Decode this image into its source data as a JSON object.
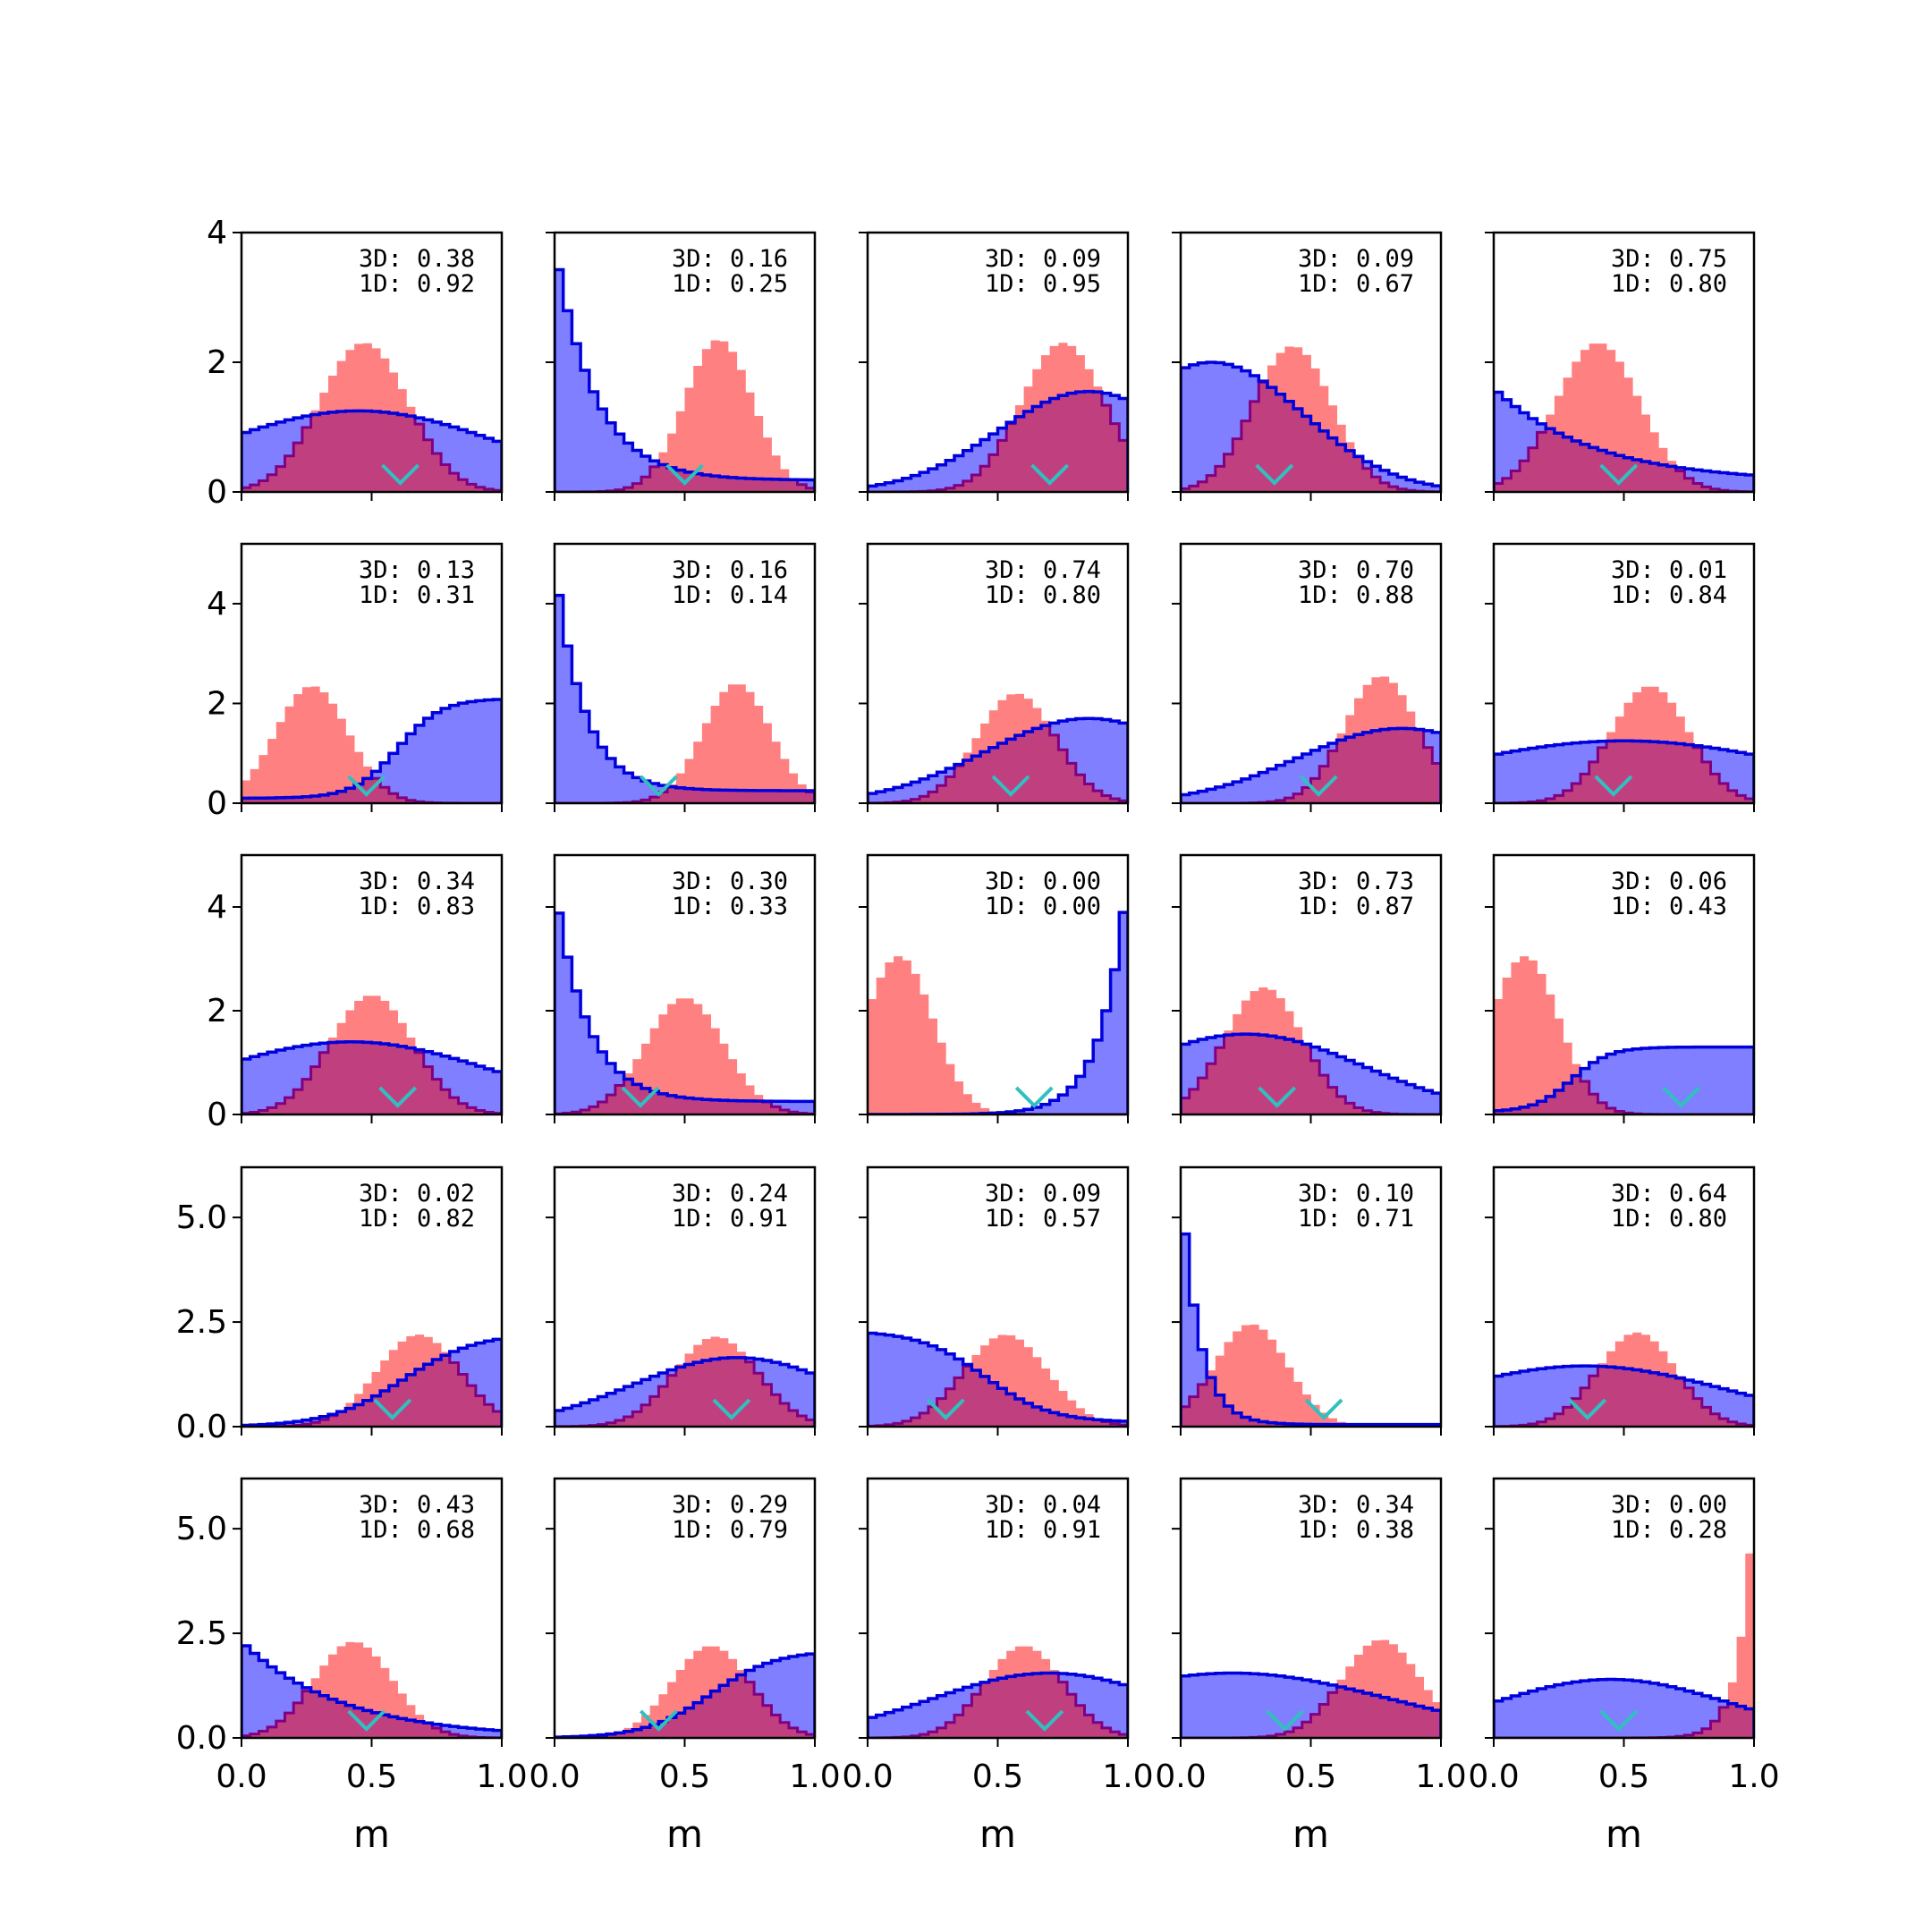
{
  "chart_data": {
    "type": "histogram-grid",
    "rows": 5,
    "cols": 5,
    "sharey": "row",
    "xlabel": "m",
    "xlim": [
      0,
      1
    ],
    "xticks": [
      "0.0",
      "0.5",
      "1.0"
    ],
    "colors": {
      "blue_fill": "#7f7fff",
      "blue_line": "#0000dd",
      "red_fill": "#ff8080",
      "overlap_fill": "#c0407f",
      "overlap_line": "#800080",
      "marker": "#30c0c0"
    },
    "row_axes": [
      {
        "ylim": [
          0,
          4
        ],
        "yticks": [
          0,
          2,
          4
        ],
        "ytick_labels": [
          "0",
          "2",
          "4"
        ]
      },
      {
        "ylim": [
          0,
          5.2
        ],
        "yticks": [
          0,
          2,
          4
        ],
        "ytick_labels": [
          "0",
          "2",
          "4"
        ]
      },
      {
        "ylim": [
          0,
          5.0
        ],
        "yticks": [
          0,
          2,
          4
        ],
        "ytick_labels": [
          "0",
          "2",
          "4"
        ]
      },
      {
        "ylim": [
          0,
          6.2
        ],
        "yticks": [
          0,
          2.5,
          5.0
        ],
        "ytick_labels": [
          "0.0",
          "2.5",
          "5.0"
        ]
      },
      {
        "ylim": [
          0,
          6.2
        ],
        "yticks": [
          0,
          2.5,
          5.0
        ],
        "ytick_labels": [
          "0.0",
          "2.5",
          "5.0"
        ]
      }
    ],
    "panels": [
      {
        "label_3d": "3D: 0.38",
        "label_1d": "1D: 0.92",
        "marker": 0.61,
        "blue": {
          "kind": "gauss",
          "mu": 0.45,
          "sigma": 0.55,
          "peak": 1.25
        },
        "red": {
          "kind": "gauss",
          "mu": 0.47,
          "sigma": 0.17,
          "peak": 2.3
        }
      },
      {
        "label_3d": "3D: 0.16",
        "label_1d": "1D: 0.25",
        "marker": 0.5,
        "blue": {
          "kind": "exp",
          "a": 3.8,
          "k": 6.5,
          "c": 0.18
        },
        "red": {
          "kind": "gauss",
          "mu": 0.63,
          "sigma": 0.13,
          "peak": 2.35
        }
      },
      {
        "label_3d": "3D: 0.09",
        "label_1d": "1D: 0.95",
        "marker": 0.7,
        "blue": {
          "kind": "gauss",
          "mu": 0.85,
          "sigma": 0.35,
          "peak": 1.55
        },
        "red": {
          "kind": "gauss",
          "mu": 0.75,
          "sigma": 0.16,
          "peak": 2.3
        }
      },
      {
        "label_3d": "3D: 0.09",
        "label_1d": "1D: 0.67",
        "marker": 0.36,
        "blue": {
          "kind": "gauss",
          "mu": 0.12,
          "sigma": 0.35,
          "peak": 2.0
        },
        "red": {
          "kind": "gauss",
          "mu": 0.43,
          "sigma": 0.15,
          "peak": 2.25
        }
      },
      {
        "label_3d": "3D: 0.75",
        "label_1d": "1D: 0.80",
        "marker": 0.48,
        "blue": {
          "kind": "exp",
          "a": 1.6,
          "k": 2.6,
          "c": 0.15
        },
        "red": {
          "kind": "gauss",
          "mu": 0.4,
          "sigma": 0.16,
          "peak": 2.3
        }
      },
      {
        "label_3d": "3D: 0.13",
        "label_1d": "1D: 0.31",
        "marker": 0.48,
        "blue": {
          "kind": "sigmoid",
          "top": 2.1,
          "mid": 0.6,
          "k": 12,
          "c": 0.1
        },
        "red": {
          "kind": "gauss",
          "mu": 0.27,
          "sigma": 0.14,
          "peak": 2.35
        }
      },
      {
        "label_3d": "3D: 0.16",
        "label_1d": "1D: 0.14",
        "marker": 0.4,
        "blue": {
          "kind": "exp",
          "a": 4.8,
          "k": 9,
          "c": 0.25
        },
        "red": {
          "kind": "gauss",
          "mu": 0.7,
          "sigma": 0.13,
          "peak": 2.4
        }
      },
      {
        "label_3d": "3D: 0.74",
        "label_1d": "1D: 0.80",
        "marker": 0.55,
        "blue": {
          "kind": "gauss",
          "mu": 0.85,
          "sigma": 0.4,
          "peak": 1.7
        },
        "red": {
          "kind": "gauss",
          "mu": 0.57,
          "sigma": 0.15,
          "peak": 2.2
        }
      },
      {
        "label_3d": "3D: 0.70",
        "label_1d": "1D: 0.88",
        "marker": 0.53,
        "blue": {
          "kind": "gauss",
          "mu": 0.85,
          "sigma": 0.4,
          "peak": 1.5
        },
        "red": {
          "kind": "gauss",
          "mu": 0.77,
          "sigma": 0.14,
          "peak": 2.55
        }
      },
      {
        "label_3d": "3D: 0.01",
        "label_1d": "1D: 0.84",
        "marker": 0.46,
        "blue": {
          "kind": "gauss",
          "mu": 0.5,
          "sigma": 0.7,
          "peak": 1.25
        },
        "red": {
          "kind": "gauss",
          "mu": 0.6,
          "sigma": 0.15,
          "peak": 2.35
        }
      },
      {
        "label_3d": "3D: 0.34",
        "label_1d": "1D: 0.83",
        "marker": 0.6,
        "blue": {
          "kind": "gauss",
          "mu": 0.42,
          "sigma": 0.55,
          "peak": 1.4
        },
        "red": {
          "kind": "gauss",
          "mu": 0.5,
          "sigma": 0.16,
          "peak": 2.3
        }
      },
      {
        "label_3d": "3D: 0.30",
        "label_1d": "1D: 0.33",
        "marker": 0.33,
        "blue": {
          "kind": "exp",
          "a": 4.4,
          "k": 8,
          "c": 0.25
        },
        "red": {
          "kind": "gauss",
          "mu": 0.5,
          "sigma": 0.15,
          "peak": 2.25
        }
      },
      {
        "label_3d": "3D: 0.00",
        "label_1d": "1D: 0.00",
        "marker": 0.64,
        "blue": {
          "kind": "expup",
          "a": 4.6,
          "k": 10,
          "c": 0
        },
        "red": {
          "kind": "gauss",
          "mu": 0.12,
          "sigma": 0.13,
          "peak": 3.05
        }
      },
      {
        "label_3d": "3D: 0.73",
        "label_1d": "1D: 0.87",
        "marker": 0.37,
        "blue": {
          "kind": "gauss",
          "mu": 0.25,
          "sigma": 0.45,
          "peak": 1.55
        },
        "red": {
          "kind": "gauss",
          "mu": 0.32,
          "sigma": 0.15,
          "peak": 2.45
        }
      },
      {
        "label_3d": "3D: 0.06",
        "label_1d": "1D: 0.43",
        "marker": 0.72,
        "blue": {
          "kind": "sigmoid",
          "top": 1.3,
          "mid": 0.3,
          "k": 14,
          "c": 0.05
        },
        "red": {
          "kind": "gauss",
          "mu": 0.12,
          "sigma": 0.13,
          "peak": 3.05
        }
      },
      {
        "label_3d": "3D: 0.02",
        "label_1d": "1D: 0.82",
        "marker": 0.58,
        "blue": {
          "kind": "sigmoid",
          "top": 2.25,
          "mid": 0.62,
          "k": 7,
          "c": 0
        },
        "red": {
          "kind": "gauss",
          "mu": 0.68,
          "sigma": 0.16,
          "peak": 2.2
        }
      },
      {
        "label_3d": "3D: 0.24",
        "label_1d": "1D: 0.91",
        "marker": 0.68,
        "blue": {
          "kind": "gauss",
          "mu": 0.7,
          "sigma": 0.4,
          "peak": 1.65
        },
        "red": {
          "kind": "gauss",
          "mu": 0.62,
          "sigma": 0.16,
          "peak": 2.15
        }
      },
      {
        "label_3d": "3D: 0.09",
        "label_1d": "1D: 0.57",
        "marker": 0.3,
        "blue": {
          "kind": "sigmoiddown",
          "top": 2.3,
          "mid": 0.45,
          "k": 8,
          "c": 0.1
        },
        "red": {
          "kind": "gauss",
          "mu": 0.53,
          "sigma": 0.16,
          "peak": 2.2
        }
      },
      {
        "label_3d": "3D: 0.10",
        "label_1d": "1D: 0.71",
        "marker": 0.55,
        "blue": {
          "kind": "exp",
          "a": 5.8,
          "k": 14,
          "c": 0.05
        },
        "red": {
          "kind": "gauss",
          "mu": 0.27,
          "sigma": 0.14,
          "peak": 2.45
        }
      },
      {
        "label_3d": "3D: 0.64",
        "label_1d": "1D: 0.80",
        "marker": 0.36,
        "blue": {
          "kind": "gauss",
          "mu": 0.35,
          "sigma": 0.55,
          "peak": 1.45
        },
        "red": {
          "kind": "gauss",
          "mu": 0.55,
          "sigma": 0.15,
          "peak": 2.25
        }
      },
      {
        "label_3d": "3D: 0.43",
        "label_1d": "1D: 0.68",
        "marker": 0.48,
        "blue": {
          "kind": "exp",
          "a": 2.3,
          "k": 2.6,
          "c": 0.0
        },
        "red": {
          "kind": "gauss",
          "mu": 0.43,
          "sigma": 0.15,
          "peak": 2.3
        }
      },
      {
        "label_3d": "3D: 0.29",
        "label_1d": "1D: 0.79",
        "marker": 0.4,
        "blue": {
          "kind": "sigmoid",
          "top": 2.1,
          "mid": 0.6,
          "k": 8,
          "c": 0
        },
        "red": {
          "kind": "gauss",
          "mu": 0.6,
          "sigma": 0.15,
          "peak": 2.2
        }
      },
      {
        "label_3d": "3D: 0.04",
        "label_1d": "1D: 0.91",
        "marker": 0.68,
        "blue": {
          "kind": "gauss",
          "mu": 0.7,
          "sigma": 0.45,
          "peak": 1.55
        },
        "red": {
          "kind": "gauss",
          "mu": 0.6,
          "sigma": 0.15,
          "peak": 2.2
        }
      },
      {
        "label_3d": "3D: 0.34",
        "label_1d": "1D: 0.38",
        "marker": 0.4,
        "blue": {
          "kind": "gauss",
          "mu": 0.2,
          "sigma": 0.6,
          "peak": 1.55
        },
        "red": {
          "kind": "gauss",
          "mu": 0.77,
          "sigma": 0.15,
          "peak": 2.35
        }
      },
      {
        "label_3d": "3D: 0.00",
        "label_1d": "1D: 0.28",
        "marker": 0.48,
        "blue": {
          "kind": "gauss",
          "mu": 0.45,
          "sigma": 0.45,
          "peak": 1.4
        },
        "red": {
          "kind": "expup",
          "a": 5.95,
          "k": 18,
          "c": 0
        }
      }
    ]
  }
}
